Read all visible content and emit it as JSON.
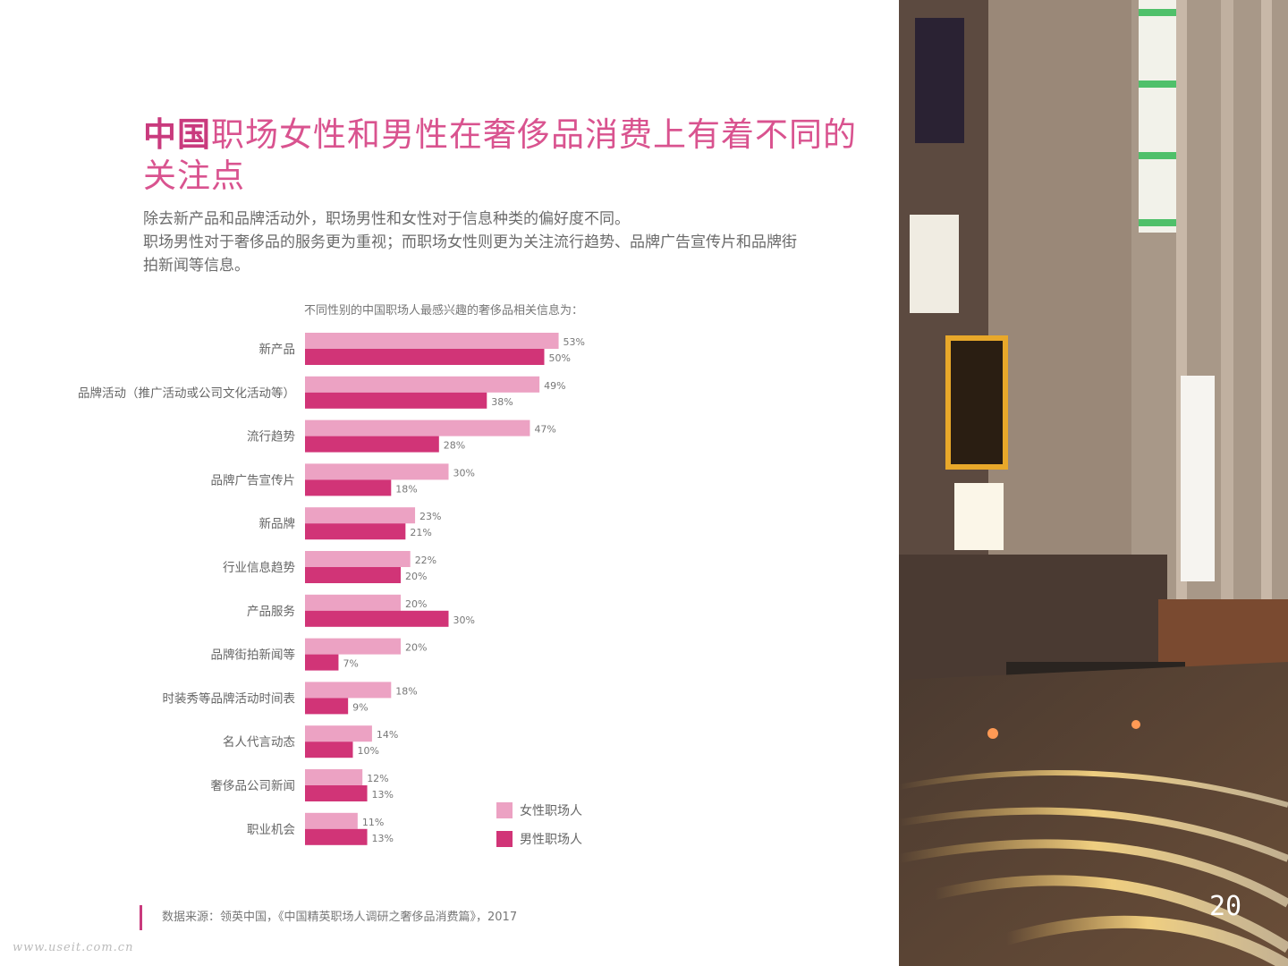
{
  "title": {
    "part_bold": "中国",
    "part_rest": "职场女性和男性在奢侈品消费上有着不同的关注点"
  },
  "subtitle": {
    "lines": [
      "除去新产品和品牌活动外，职场男性和女性对于信息种类的偏好度不同。",
      "职场男性对于奢侈品的服务更为重视；而职场女性则更为关注流行趋势、品牌广告宣传片和品牌街",
      "拍新闻等信息。"
    ]
  },
  "chart_caption": "不同性别的中国职场人最感兴趣的奢侈品相关信息为：",
  "chart_data": {
    "type": "bar",
    "orientation": "horizontal",
    "categories": [
      "新产品",
      "品牌活动（推广活动或公司文化活动等）",
      "流行趋势",
      "品牌广告宣传片",
      "新品牌",
      "行业信息趋势",
      "产品服务",
      "品牌街拍新闻等",
      "时装秀等品牌活动时间表",
      "名人代言动态",
      "奢侈品公司新闻",
      "职业机会"
    ],
    "series": [
      {
        "name": "女性职场人",
        "values": [
          53,
          49,
          47,
          30,
          23,
          22,
          20,
          20,
          18,
          14,
          12,
          11
        ],
        "color": "#eca2c3"
      },
      {
        "name": "男性职场人",
        "values": [
          50,
          38,
          28,
          18,
          21,
          20,
          30,
          7,
          9,
          10,
          13,
          13
        ],
        "color": "#d13477"
      }
    ],
    "value_suffix": "%",
    "legend_position": "bottom-right",
    "grid": false
  },
  "legend": {
    "items": [
      "女性职场人",
      "男性职场人"
    ]
  },
  "footer": {
    "source": "数据来源：领英中国，《中国精英职场人调研之奢侈品消费篇》，2017"
  },
  "page_number": "20",
  "watermark": "www.useit.com.cn",
  "colors": {
    "accent": "#c93a7d",
    "female": "#eca2c3",
    "male": "#d13477"
  }
}
